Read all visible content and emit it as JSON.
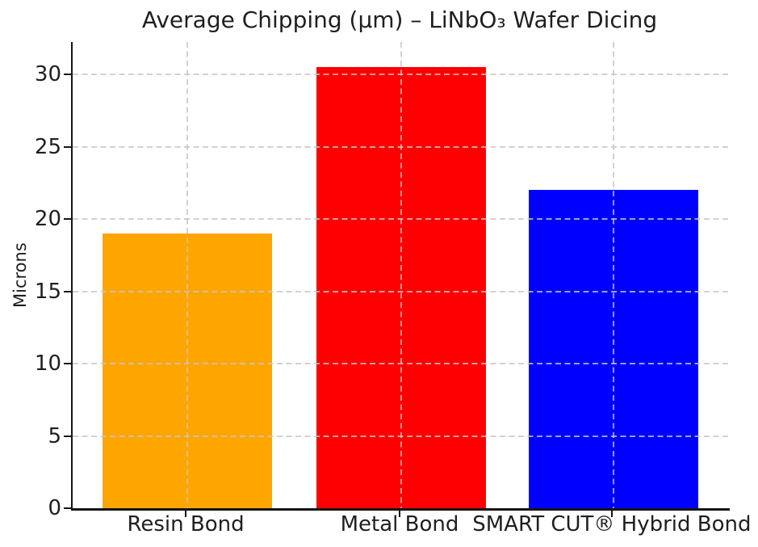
{
  "chart_data": {
    "type": "bar",
    "title": "Average Chipping (μm) – LiNbO₃ Wafer Dicing",
    "xlabel": "",
    "ylabel": "Microns",
    "categories": [
      "Resin Bond",
      "Metal Bond",
      "SMART CUT® Hybrid Bond"
    ],
    "values": [
      19,
      30.5,
      22
    ],
    "bar_colors": [
      "#FFA500",
      "#FF0000",
      "#0000FF"
    ],
    "yticks": [
      0,
      5,
      10,
      15,
      20,
      25,
      30
    ],
    "ylim": [
      0,
      32.25
    ],
    "grid": "dashed light-gray gridlines, horizontal at each y-tick and vertical at each bar center, drawn over the bars",
    "legend_position": "none",
    "background_color": "#ffffff",
    "text_color": "#1f1f1f",
    "axis_color": "#151515",
    "grid_color": "#c6c6c6"
  }
}
